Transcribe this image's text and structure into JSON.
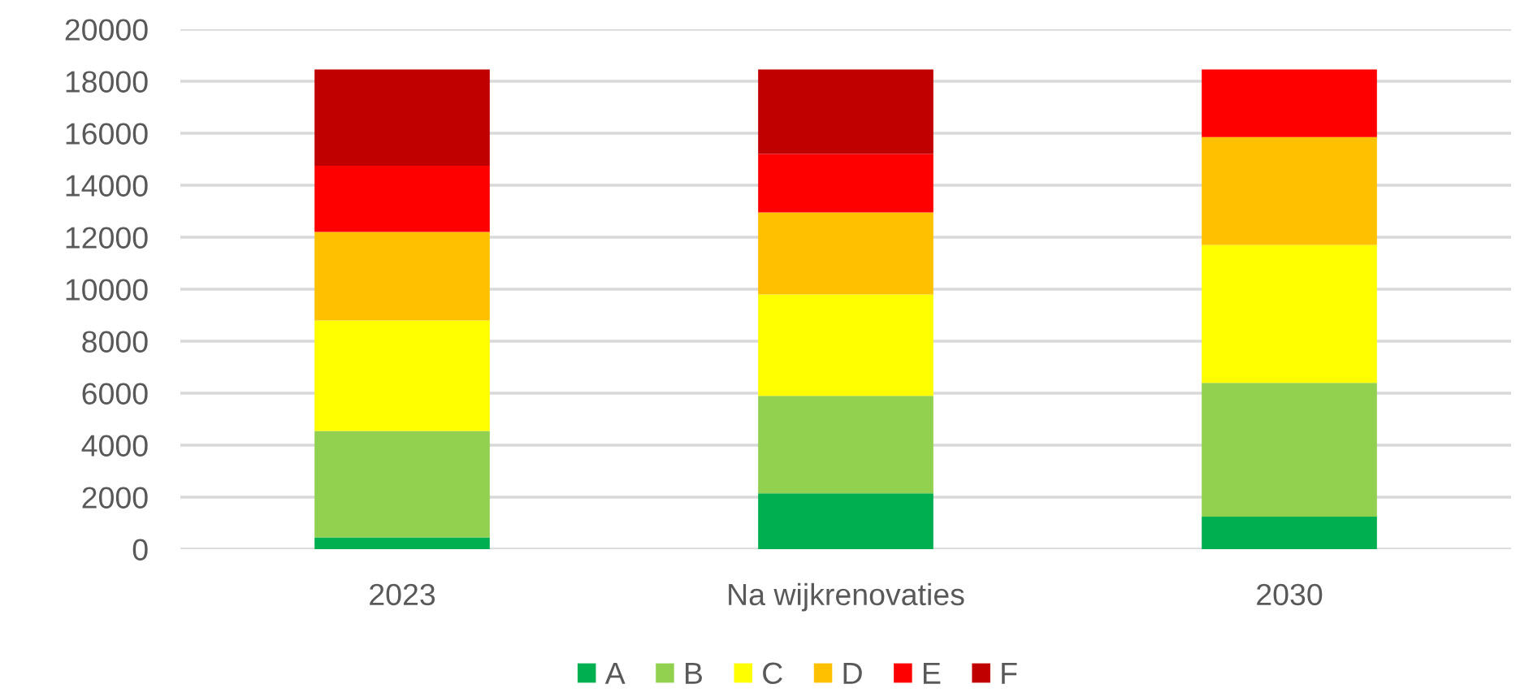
{
  "chart_data": {
    "type": "bar",
    "stacked": true,
    "categories": [
      "2023",
      "Na wijkrenovaties",
      "2030"
    ],
    "series": [
      {
        "name": "A",
        "color": "#00b050",
        "values": [
          450,
          2150,
          1250
        ]
      },
      {
        "name": "B",
        "color": "#92d050",
        "values": [
          4100,
          3750,
          5150
        ]
      },
      {
        "name": "C",
        "color": "#ffff00",
        "values": [
          4250,
          3900,
          5300
        ]
      },
      {
        "name": "D",
        "color": "#ffc000",
        "values": [
          3400,
          3150,
          4150
        ]
      },
      {
        "name": "E",
        "color": "#ff0000",
        "values": [
          2550,
          2250,
          2600
        ]
      },
      {
        "name": "F",
        "color": "#c00000",
        "values": [
          3700,
          3250,
          0
        ]
      }
    ],
    "ylim": [
      0,
      20000
    ],
    "yticks": [
      0,
      2000,
      4000,
      6000,
      8000,
      10000,
      12000,
      14000,
      16000,
      18000,
      20000
    ],
    "grid": "y",
    "legend": "bottom"
  }
}
